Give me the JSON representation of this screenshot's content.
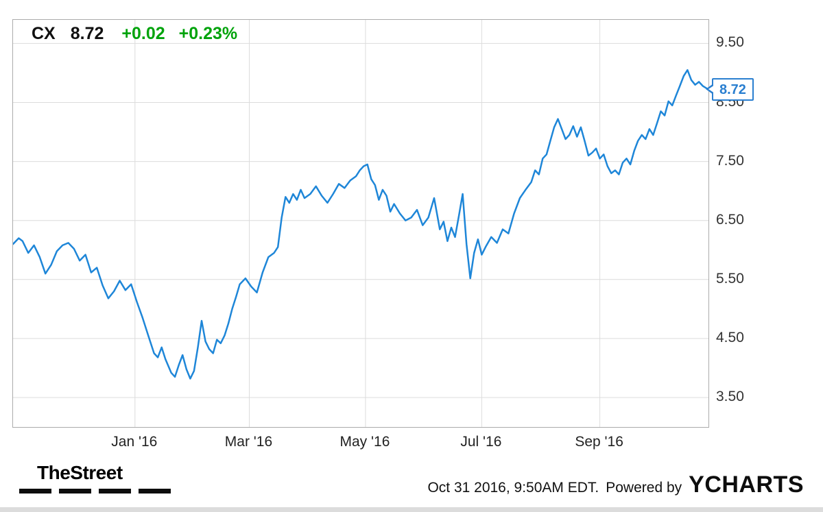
{
  "ticker": {
    "symbol": "CX",
    "price": "8.72",
    "change": "+0.02",
    "change_pct": "+0.23%"
  },
  "price_callout": "8.72",
  "footer": {
    "brand": "TheStreet",
    "timestamp": "Oct 31 2016, 9:50AM EDT.",
    "powered_by": "Powered by",
    "ycharts_logo": "YCHARTS"
  },
  "colors": {
    "line_blue": "#1E86D8",
    "positive_green": "#00A30B",
    "callout_blue": "#2A7FD0",
    "grid_gray": "#DCDCDC"
  },
  "chart_data": {
    "type": "line",
    "title": "",
    "xlabel": "",
    "ylabel": "",
    "legend": false,
    "grid": true,
    "ylim": [
      3.0,
      9.9
    ],
    "xlim_days": [
      0,
      365
    ],
    "y_ticks": [
      9.5,
      8.5,
      7.5,
      6.5,
      5.5,
      4.5,
      3.5
    ],
    "x_ticks": [
      {
        "day": 64,
        "label": "Jan '16"
      },
      {
        "day": 124,
        "label": "Mar '16"
      },
      {
        "day": 185,
        "label": "May '16"
      },
      {
        "day": 246,
        "label": "Jul '16"
      },
      {
        "day": 308,
        "label": "Sep '16"
      }
    ],
    "last_price": 8.72,
    "series": [
      {
        "name": "CX",
        "color": "#1E86D8",
        "points": [
          [
            0,
            6.1
          ],
          [
            3,
            6.2
          ],
          [
            5,
            6.15
          ],
          [
            8,
            5.95
          ],
          [
            11,
            6.08
          ],
          [
            14,
            5.88
          ],
          [
            17,
            5.6
          ],
          [
            20,
            5.75
          ],
          [
            23,
            5.98
          ],
          [
            26,
            6.08
          ],
          [
            29,
            6.12
          ],
          [
            32,
            6.02
          ],
          [
            35,
            5.82
          ],
          [
            38,
            5.92
          ],
          [
            41,
            5.62
          ],
          [
            44,
            5.7
          ],
          [
            47,
            5.4
          ],
          [
            50,
            5.18
          ],
          [
            53,
            5.3
          ],
          [
            56,
            5.48
          ],
          [
            59,
            5.32
          ],
          [
            62,
            5.42
          ],
          [
            65,
            5.12
          ],
          [
            68,
            4.85
          ],
          [
            71,
            4.55
          ],
          [
            74,
            4.25
          ],
          [
            76,
            4.18
          ],
          [
            78,
            4.35
          ],
          [
            80,
            4.15
          ],
          [
            83,
            3.92
          ],
          [
            85,
            3.85
          ],
          [
            87,
            4.05
          ],
          [
            89,
            4.22
          ],
          [
            91,
            3.98
          ],
          [
            93,
            3.82
          ],
          [
            95,
            3.95
          ],
          [
            97,
            4.35
          ],
          [
            99,
            4.8
          ],
          [
            101,
            4.45
          ],
          [
            103,
            4.32
          ],
          [
            105,
            4.25
          ],
          [
            107,
            4.48
          ],
          [
            109,
            4.42
          ],
          [
            111,
            4.55
          ],
          [
            113,
            4.75
          ],
          [
            115,
            5.0
          ],
          [
            117,
            5.2
          ],
          [
            119,
            5.42
          ],
          [
            122,
            5.52
          ],
          [
            125,
            5.38
          ],
          [
            128,
            5.28
          ],
          [
            131,
            5.62
          ],
          [
            134,
            5.88
          ],
          [
            137,
            5.95
          ],
          [
            139,
            6.05
          ],
          [
            141,
            6.55
          ],
          [
            143,
            6.9
          ],
          [
            145,
            6.8
          ],
          [
            147,
            6.95
          ],
          [
            149,
            6.85
          ],
          [
            151,
            7.02
          ],
          [
            153,
            6.88
          ],
          [
            156,
            6.95
          ],
          [
            159,
            7.08
          ],
          [
            162,
            6.92
          ],
          [
            165,
            6.8
          ],
          [
            168,
            6.95
          ],
          [
            171,
            7.12
          ],
          [
            174,
            7.05
          ],
          [
            177,
            7.18
          ],
          [
            180,
            7.25
          ],
          [
            182,
            7.35
          ],
          [
            184,
            7.42
          ],
          [
            186,
            7.45
          ],
          [
            188,
            7.2
          ],
          [
            190,
            7.1
          ],
          [
            192,
            6.85
          ],
          [
            194,
            7.02
          ],
          [
            196,
            6.92
          ],
          [
            198,
            6.65
          ],
          [
            200,
            6.78
          ],
          [
            203,
            6.62
          ],
          [
            206,
            6.5
          ],
          [
            209,
            6.55
          ],
          [
            212,
            6.68
          ],
          [
            215,
            6.42
          ],
          [
            218,
            6.55
          ],
          [
            221,
            6.88
          ],
          [
            224,
            6.35
          ],
          [
            226,
            6.48
          ],
          [
            228,
            6.15
          ],
          [
            230,
            6.38
          ],
          [
            232,
            6.22
          ],
          [
            234,
            6.58
          ],
          [
            236,
            6.95
          ],
          [
            238,
            6.1
          ],
          [
            240,
            5.52
          ],
          [
            242,
            5.95
          ],
          [
            244,
            6.18
          ],
          [
            246,
            5.92
          ],
          [
            248,
            6.05
          ],
          [
            251,
            6.22
          ],
          [
            254,
            6.12
          ],
          [
            257,
            6.35
          ],
          [
            260,
            6.28
          ],
          [
            263,
            6.62
          ],
          [
            266,
            6.88
          ],
          [
            269,
            7.02
          ],
          [
            272,
            7.15
          ],
          [
            274,
            7.35
          ],
          [
            276,
            7.28
          ],
          [
            278,
            7.55
          ],
          [
            280,
            7.62
          ],
          [
            282,
            7.85
          ],
          [
            284,
            8.08
          ],
          [
            286,
            8.22
          ],
          [
            288,
            8.05
          ],
          [
            290,
            7.88
          ],
          [
            292,
            7.95
          ],
          [
            294,
            8.1
          ],
          [
            296,
            7.92
          ],
          [
            298,
            8.08
          ],
          [
            300,
            7.85
          ],
          [
            302,
            7.6
          ],
          [
            304,
            7.65
          ],
          [
            306,
            7.72
          ],
          [
            308,
            7.55
          ],
          [
            310,
            7.62
          ],
          [
            312,
            7.42
          ],
          [
            314,
            7.3
          ],
          [
            316,
            7.35
          ],
          [
            318,
            7.28
          ],
          [
            320,
            7.48
          ],
          [
            322,
            7.55
          ],
          [
            324,
            7.45
          ],
          [
            326,
            7.68
          ],
          [
            328,
            7.85
          ],
          [
            330,
            7.95
          ],
          [
            332,
            7.88
          ],
          [
            334,
            8.05
          ],
          [
            336,
            7.95
          ],
          [
            338,
            8.15
          ],
          [
            340,
            8.35
          ],
          [
            342,
            8.28
          ],
          [
            344,
            8.52
          ],
          [
            346,
            8.45
          ],
          [
            348,
            8.62
          ],
          [
            350,
            8.78
          ],
          [
            352,
            8.95
          ],
          [
            354,
            9.05
          ],
          [
            356,
            8.88
          ],
          [
            358,
            8.8
          ],
          [
            360,
            8.85
          ],
          [
            362,
            8.78
          ],
          [
            365,
            8.72
          ]
        ]
      }
    ]
  }
}
